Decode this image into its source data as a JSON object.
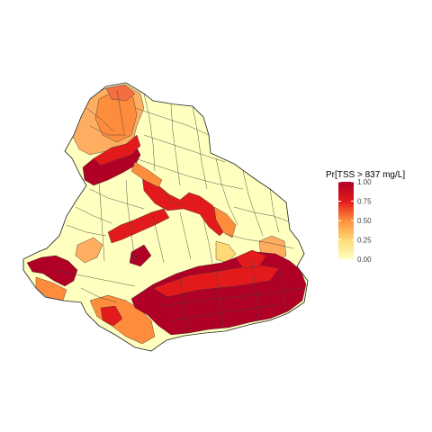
{
  "map": {
    "legend": {
      "title": "Pr[TSS > 837 mg/L]",
      "ticks": [
        "1.00",
        "0.75",
        "0.50",
        "0.25",
        "0.00"
      ],
      "scale": [
        {
          "stop": 0.0,
          "color": "#ffffbf"
        },
        {
          "stop": 0.25,
          "color": "#fed976"
        },
        {
          "stop": 0.5,
          "color": "#fd8d3c"
        },
        {
          "stop": 0.75,
          "color": "#e31a1c"
        },
        {
          "stop": 1.0,
          "color": "#b10026"
        }
      ]
    },
    "colors": {
      "low": "#ffffbf",
      "mid_low": "#fed976",
      "mid": "#fd8d3c",
      "high": "#e31a1c",
      "very_high": "#b10026",
      "boundary": "#333333"
    }
  }
}
